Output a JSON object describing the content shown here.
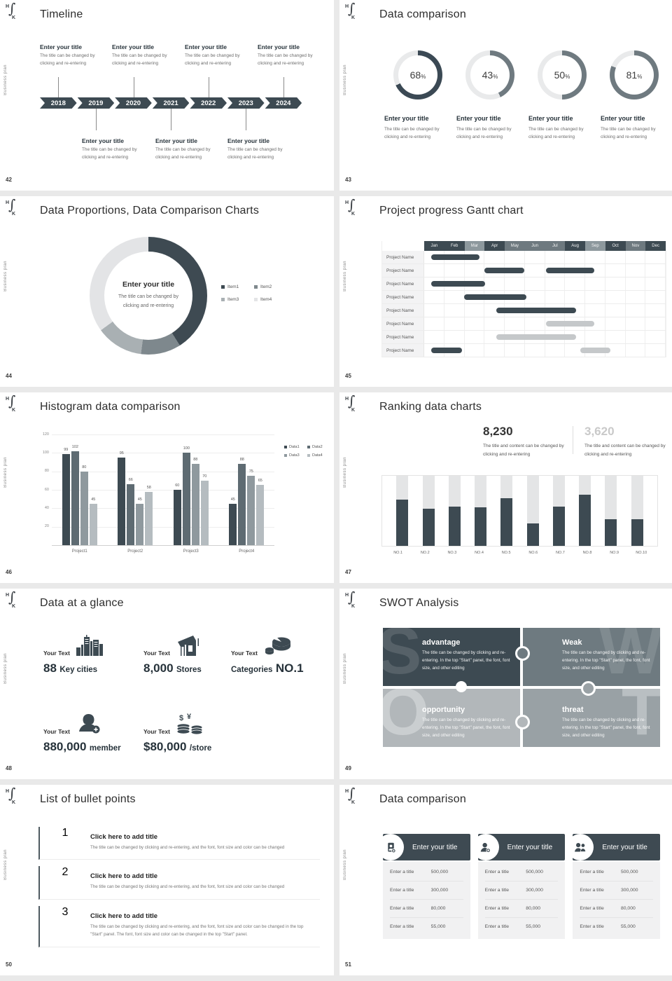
{
  "brand": {
    "logo_h": "H",
    "logo_f": "∫",
    "logo_k": "K",
    "sidebar_text": "Business plan"
  },
  "slides": [
    {
      "id": "timeline",
      "page": "42",
      "title": "Timeline",
      "years": [
        "2018",
        "2019",
        "2020",
        "2021",
        "2022",
        "2023",
        "2024"
      ],
      "entries_top": [
        {
          "title": "Enter your title",
          "desc": "The title can be changed by clicking and re-entering"
        },
        {
          "title": "Enter your title",
          "desc": "The title can be changed by clicking and re-entering"
        },
        {
          "title": "Enter your title",
          "desc": "The title can be changed by clicking and re-entering"
        },
        {
          "title": "Enter your title",
          "desc": "The title can be changed by clicking and re-entering"
        }
      ],
      "entries_bottom": [
        {
          "title": "Enter your title",
          "desc": "The title can be changed by clicking and re-entering"
        },
        {
          "title": "Enter your title",
          "desc": "The title can be changed by clicking and re-entering"
        },
        {
          "title": "Enter your title",
          "desc": "The title can be changed by clicking and re-entering"
        }
      ]
    },
    {
      "id": "data-comparison-rings",
      "page": "43",
      "title": "Data comparison",
      "items": [
        {
          "title": "Enter your title",
          "desc": "The title can be changed by clicking and re-entering"
        },
        {
          "title": "Enter your title",
          "desc": "The title can be changed by clicking and re-entering"
        },
        {
          "title": "Enter your title",
          "desc": "The title can be changed by clicking and re-entering"
        },
        {
          "title": "Enter your title",
          "desc": "The title can be changed by clicking and re-entering"
        }
      ]
    },
    {
      "id": "proportions-donut",
      "page": "44",
      "title": "Data Proportions, Data Comparison Charts",
      "center_title": "Enter your title",
      "center_desc": "The title can be changed by clicking and re-entering"
    },
    {
      "id": "gantt",
      "page": "45",
      "title": "Project progress Gantt chart"
    },
    {
      "id": "histogram",
      "page": "46",
      "title": "Histogram data comparison"
    },
    {
      "id": "ranking",
      "page": "47",
      "title": "Ranking data charts",
      "stats": [
        {
          "value": "8,230",
          "desc": "The title and content can be changed by clicking and re-entering"
        },
        {
          "value": "3,620",
          "desc": "The title and content can be changed by clicking and re-entering"
        }
      ]
    },
    {
      "id": "glance",
      "page": "48",
      "title": "Data at a glance",
      "caption": "Your Text",
      "items": [
        {
          "icon": "city-icon",
          "parts": [
            {
              "text": "88",
              "big": true
            },
            {
              "text": "Key cities",
              "big": false
            }
          ]
        },
        {
          "icon": "store-icon",
          "parts": [
            {
              "text": "8,000",
              "big": true
            },
            {
              "text": "Stores",
              "big": false
            }
          ]
        },
        {
          "icon": "pie-3d-icon",
          "parts": [
            {
              "text": "Categories",
              "big": false
            },
            {
              "text": "NO.1",
              "big": true
            }
          ]
        },
        {
          "icon": "member-add-icon",
          "parts": [
            {
              "text": "880,000",
              "big": true
            },
            {
              "text": "member",
              "big": false
            }
          ]
        },
        {
          "icon": "coins-icon",
          "parts": [
            {
              "text": "$80,000",
              "big": true
            },
            {
              "text": "/store",
              "big": false
            }
          ]
        }
      ]
    },
    {
      "id": "swot",
      "page": "49",
      "title": "SWOT Analysis",
      "panels": [
        {
          "letter": "S",
          "title": "advantage",
          "body": "The title can be changed by clicking and re-entering. In the top \"Start\" panel, the font, font size, and other editing",
          "color": "#3d4a52",
          "letter_side": "left"
        },
        {
          "letter": "W",
          "title": "Weak",
          "body": "The title can be changed by clicking and re-entering. In the top \"Start\" panel, the font, font size, and other editing",
          "color": "#6e7a80",
          "letter_side": "right"
        },
        {
          "letter": "O",
          "title": "opportunity",
          "body": "The title can be changed by clicking and re-entering. In the top \"Start\" panel, the font, font size, and other editing",
          "color": "#b2b7ba",
          "letter_side": "left"
        },
        {
          "letter": "T",
          "title": "threat",
          "body": "The title can be changed by clicking and re-entering. In the top \"Start\" panel, the font, font size, and other editing",
          "color": "#99a1a5",
          "letter_side": "right"
        }
      ]
    },
    {
      "id": "bullets",
      "page": "50",
      "title": "List of bullet points",
      "items": [
        {
          "num": "1",
          "title": "Click here to add title",
          "body": "The title can be changed by clicking and re-entering, and the font, font size and color can be changed"
        },
        {
          "num": "2",
          "title": "Click here to add title",
          "body": "The title can be changed by clicking and re-entering, and the font, font size and color can be changed"
        },
        {
          "num": "3",
          "title": "Click here to add title",
          "body": "The title can be changed by clicking and re-entering, and the font, font size and color can be changed in the top \"Start\" panel. The font, font size and color can be changed in the top \"Start\" panel."
        }
      ]
    },
    {
      "id": "cards",
      "page": "51",
      "title": "Data comparison",
      "cards": [
        {
          "icon": "id-card-plus-icon",
          "title": "Enter your title"
        },
        {
          "icon": "person-plus-icon",
          "title": "Enter your title"
        },
        {
          "icon": "people-icon",
          "title": "Enter your title"
        }
      ],
      "rows": [
        {
          "label": "Enter a title",
          "value": "500,000"
        },
        {
          "label": "Enter a title",
          "value": "300,000"
        },
        {
          "label": "Enter a title",
          "value": "80,000"
        },
        {
          "label": "Enter a title",
          "value": "55,000"
        }
      ]
    }
  ],
  "chart_data": [
    {
      "id": "percent-rings",
      "type": "donut",
      "slide": "43",
      "values": [
        68,
        43,
        50,
        81
      ],
      "colors": [
        "#3b4954",
        "#6f7a80",
        "#6f7a80",
        "#6f7a80"
      ],
      "track_color": "#e9eaeb"
    },
    {
      "id": "proportions-donut",
      "type": "pie",
      "slide": "44",
      "legend_position": "right",
      "segments": [
        {
          "label": "Item1",
          "value": 41,
          "color": "#3e4a52"
        },
        {
          "label": "Item2",
          "value": 11,
          "color": "#7e888d"
        },
        {
          "label": "Item3",
          "value": 13,
          "color": "#a9b0b3"
        },
        {
          "label": "Item4",
          "value": 35,
          "color": "#e3e4e6"
        }
      ]
    },
    {
      "id": "gantt",
      "type": "gantt",
      "slide": "45",
      "row_label": "Project Name",
      "months": [
        {
          "label": "Jan",
          "shade": "dark"
        },
        {
          "label": "Feb",
          "shade": "dark"
        },
        {
          "label": "Mar",
          "shade": "light"
        },
        {
          "label": "Apr",
          "shade": "dark"
        },
        {
          "label": "May",
          "shade": "mid"
        },
        {
          "label": "Jun",
          "shade": "mid"
        },
        {
          "label": "Jul",
          "shade": "mid"
        },
        {
          "label": "Aug",
          "shade": "dark"
        },
        {
          "label": "Sep",
          "shade": "light"
        },
        {
          "label": "Oct",
          "shade": "dark"
        },
        {
          "label": "Nov",
          "shade": "mid"
        },
        {
          "label": "Dec",
          "shade": "dark"
        }
      ],
      "rows": [
        {
          "bars": [
            {
              "start": 0.35,
              "end": 2.75,
              "tone": "dark"
            }
          ]
        },
        {
          "bars": [
            {
              "start": 3.0,
              "end": 5.0,
              "tone": "dark"
            },
            {
              "start": 6.1,
              "end": 8.5,
              "tone": "dark"
            }
          ]
        },
        {
          "bars": [
            {
              "start": 0.35,
              "end": 3.05,
              "tone": "dark"
            }
          ]
        },
        {
          "bars": [
            {
              "start": 2.0,
              "end": 5.1,
              "tone": "dark"
            }
          ]
        },
        {
          "bars": [
            {
              "start": 3.6,
              "end": 7.6,
              "tone": "dark"
            }
          ]
        },
        {
          "bars": [
            {
              "start": 6.1,
              "end": 8.5,
              "tone": "light"
            }
          ]
        },
        {
          "bars": [
            {
              "start": 3.6,
              "end": 7.6,
              "tone": "light"
            }
          ]
        },
        {
          "bars": [
            {
              "start": 0.35,
              "end": 1.9,
              "tone": "dark"
            },
            {
              "start": 7.8,
              "end": 9.3,
              "tone": "light"
            }
          ]
        }
      ]
    },
    {
      "id": "grouped-histogram",
      "type": "bar",
      "slide": "46",
      "grid": true,
      "legend_position": "top-right",
      "categories": [
        "Project1",
        "Project2",
        "Project3",
        "Project4"
      ],
      "series": [
        {
          "name": "Data1",
          "color": "#3d4a52",
          "values": [
            99,
            95,
            60,
            45
          ]
        },
        {
          "name": "Data2",
          "color": "#5e6b72",
          "values": [
            102,
            66,
            100,
            88
          ]
        },
        {
          "name": "Data3",
          "color": "#8f999e",
          "values": [
            80,
            45,
            88,
            75
          ]
        },
        {
          "name": "Data4",
          "color": "#b5bcc0",
          "values": [
            45,
            58,
            70,
            65
          ]
        }
      ],
      "ylim": [
        0,
        120
      ],
      "yticks": [
        0,
        20,
        40,
        60,
        80,
        100,
        120
      ]
    },
    {
      "id": "ranking-bars",
      "type": "bar",
      "slide": "47",
      "categories": [
        "NO.1",
        "NO.2",
        "NO.3",
        "NO.4",
        "NO.5",
        "NO.6",
        "NO.7",
        "NO.8",
        "NO.9",
        "NO.10"
      ],
      "values": [
        66,
        53,
        56,
        55,
        68,
        32,
        56,
        73,
        38,
        38
      ],
      "ylim": [
        0,
        100
      ],
      "track_color": "#e4e5e6",
      "fill_color": "#3d4a52"
    }
  ]
}
